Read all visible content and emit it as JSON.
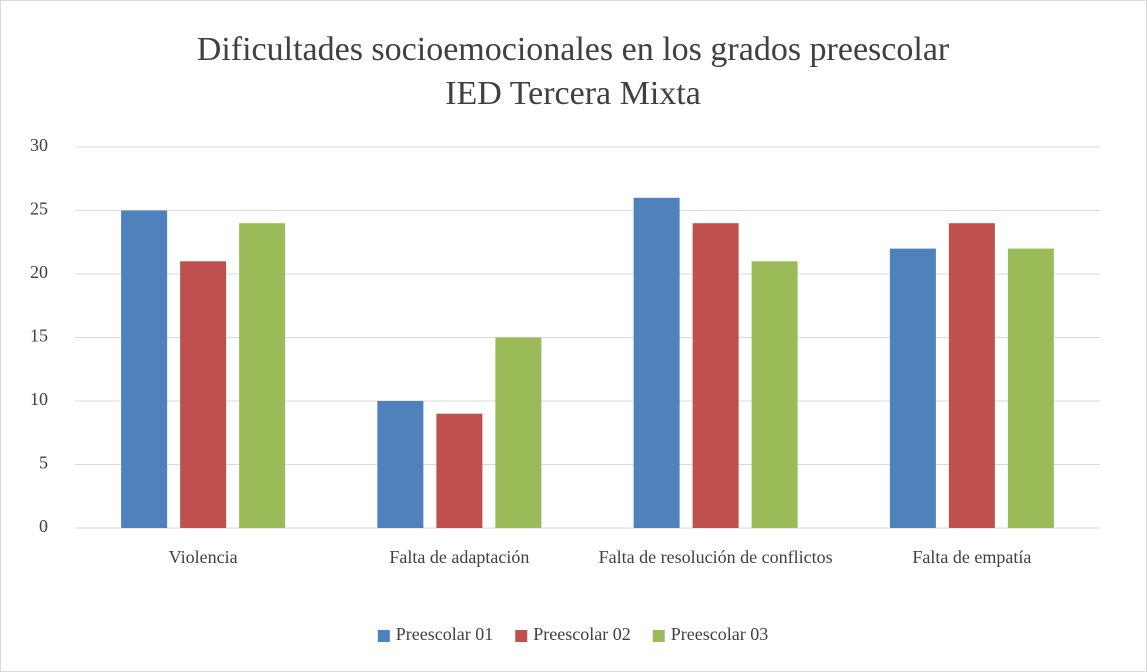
{
  "chart_data": {
    "type": "bar",
    "title": [
      "Dificultades socioemocionales en los grados preescolar",
      "IED Tercera Mixta"
    ],
    "categories": [
      "Violencia",
      "Falta de adaptación",
      "Falta de resolución de conflictos",
      "Falta de empatía"
    ],
    "series": [
      {
        "name": "Preescolar 01",
        "color": "#4f81bd",
        "values": [
          25,
          10,
          26,
          22
        ]
      },
      {
        "name": "Preescolar 02",
        "color": "#c0504d",
        "values": [
          21,
          9,
          24,
          24
        ]
      },
      {
        "name": "Preescolar 03",
        "color": "#9bbb59",
        "values": [
          24,
          15,
          21,
          22
        ]
      }
    ],
    "ylim": [
      0,
      30
    ],
    "yticks": [
      0,
      5,
      10,
      15,
      20,
      25,
      30
    ],
    "grid": true,
    "legend": "bottom"
  }
}
